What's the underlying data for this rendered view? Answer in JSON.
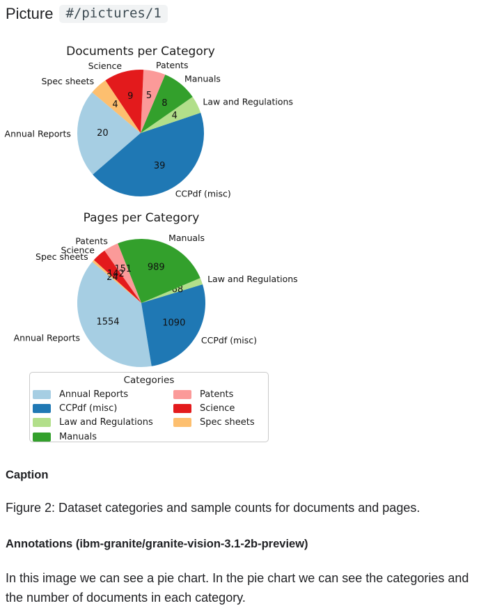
{
  "header": {
    "title": "Picture",
    "reference": "#/pictures/1"
  },
  "chart_data": [
    {
      "type": "pie",
      "title": "Documents per Category",
      "unit": "documents",
      "categories": [
        "Annual Reports",
        "CCPdf (misc)",
        "Law and Regulations",
        "Manuals",
        "Patents",
        "Science",
        "Spec sheets"
      ],
      "values": [
        20,
        39,
        4,
        8,
        5,
        9,
        4
      ],
      "colors": [
        "#a6cee3",
        "#1f78b4",
        "#b2df8a",
        "#33a02c",
        "#fb9a99",
        "#e31a1c",
        "#fdbf6f"
      ],
      "start_angle_deg": 140,
      "direction": "counterclockwise",
      "label_distance": 1.1,
      "value_distance": 0.6,
      "legend_position": "below"
    },
    {
      "type": "pie",
      "title": "Pages per Category",
      "unit": "pages",
      "categories": [
        "Annual Reports",
        "CCPdf (misc)",
        "Law and Regulations",
        "Manuals",
        "Patents",
        "Science",
        "Spec sheets"
      ],
      "values": [
        1554,
        1090,
        68,
        989,
        151,
        142,
        24
      ],
      "colors": [
        "#a6cee3",
        "#1f78b4",
        "#b2df8a",
        "#33a02c",
        "#fb9a99",
        "#e31a1c",
        "#fdbf6f"
      ],
      "start_angle_deg": 140,
      "direction": "counterclockwise",
      "label_distance": 1.1,
      "value_distance": 0.6,
      "legend_position": "below"
    }
  ],
  "legend": {
    "title": "Categories",
    "rows_per_column": 4,
    "items": [
      {
        "label": "Annual Reports",
        "color": "#a6cee3"
      },
      {
        "label": "CCPdf (misc)",
        "color": "#1f78b4"
      },
      {
        "label": "Law and Regulations",
        "color": "#b2df8a"
      },
      {
        "label": "Manuals",
        "color": "#33a02c"
      },
      {
        "label": "Patents",
        "color": "#fb9a99"
      },
      {
        "label": "Science",
        "color": "#e31a1c"
      },
      {
        "label": "Spec sheets",
        "color": "#fdbf6f"
      }
    ]
  },
  "caption": {
    "heading": "Caption",
    "text": "Figure 2: Dataset categories and sample counts for documents and pages."
  },
  "annotations": {
    "heading": "Annotations (ibm-granite/granite-vision-3.1-2b-preview)",
    "lines": [
      "In this image we can see a pie chart. In the pie chart we can see the categories and",
      "the number of documents in each category."
    ]
  }
}
